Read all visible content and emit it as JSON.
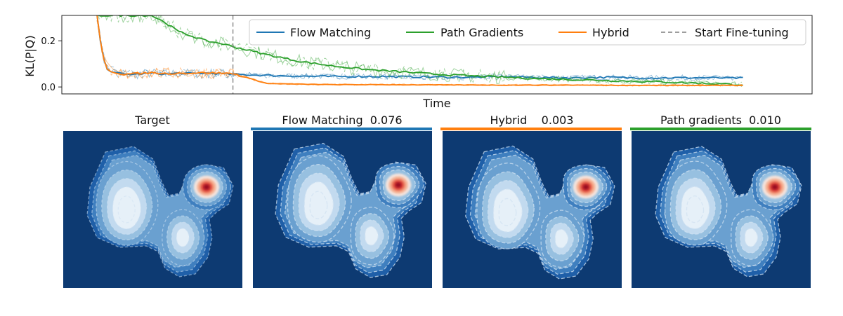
{
  "chart_data": {
    "type": "line",
    "xlabel": "Time",
    "ylabel": "KL(P|Q)",
    "x_range": [
      0,
      100
    ],
    "ylim": [
      -0.03,
      0.31
    ],
    "yticks": [
      0.0,
      0.2
    ],
    "ytick_labels": [
      "0.0",
      "0.2"
    ],
    "fine_tune_start": 20,
    "fine_tune_label": "Start Fine-tuning",
    "legend_position": "top-right",
    "colors": {
      "flow": "#1f77b4",
      "path": "#2ca02c",
      "hybrid": "#ff7f0e",
      "start": "#7f7f7f"
    },
    "series": [
      {
        "key": "flow",
        "name": "Flow Matching",
        "x": [
          0,
          0.5,
          1,
          1.5,
          2,
          3,
          4,
          6,
          8,
          10,
          12,
          14,
          16,
          18,
          20,
          25,
          30,
          35,
          40,
          45,
          50,
          55,
          60,
          65,
          70,
          75,
          80,
          85,
          90,
          95
        ],
        "y": [
          0.31,
          0.2,
          0.12,
          0.08,
          0.07,
          0.06,
          0.055,
          0.055,
          0.06,
          0.055,
          0.06,
          0.058,
          0.06,
          0.058,
          0.055,
          0.05,
          0.047,
          0.045,
          0.046,
          0.044,
          0.043,
          0.042,
          0.045,
          0.041,
          0.04,
          0.042,
          0.039,
          0.04,
          0.04,
          0.038
        ]
      },
      {
        "key": "path",
        "name": "Path Gradients",
        "x": [
          0,
          2,
          4,
          6,
          8,
          10,
          12,
          14,
          16,
          18,
          20,
          25,
          30,
          35,
          40,
          45,
          50,
          55,
          60,
          65,
          70,
          75,
          80,
          85,
          90,
          95
        ],
        "y": [
          0.31,
          0.31,
          0.31,
          0.31,
          0.31,
          0.28,
          0.24,
          0.22,
          0.2,
          0.19,
          0.175,
          0.14,
          0.11,
          0.09,
          0.075,
          0.065,
          0.055,
          0.048,
          0.042,
          0.036,
          0.032,
          0.028,
          0.024,
          0.02,
          0.015,
          0.01
        ]
      },
      {
        "key": "hybrid",
        "name": "Hybrid",
        "x": [
          0,
          0.5,
          1,
          1.5,
          2,
          3,
          4,
          6,
          8,
          10,
          12,
          14,
          16,
          18,
          20,
          25,
          30,
          35,
          40,
          50,
          60,
          70,
          80,
          90,
          95
        ],
        "y": [
          0.31,
          0.2,
          0.12,
          0.08,
          0.07,
          0.06,
          0.055,
          0.058,
          0.062,
          0.058,
          0.06,
          0.06,
          0.062,
          0.06,
          0.058,
          0.015,
          0.012,
          0.01,
          0.01,
          0.009,
          0.008,
          0.008,
          0.007,
          0.007,
          0.007
        ]
      },
      {
        "key": "start",
        "name": "Start Fine-tuning",
        "x": [
          20,
          20
        ],
        "y": [
          -0.03,
          0.31
        ]
      }
    ]
  },
  "panels": [
    {
      "key": "target",
      "title": "Target",
      "model_label": "",
      "kl": "",
      "bar_color": ""
    },
    {
      "key": "flow",
      "title": "Flow Matching  0.076",
      "model_label": "Flow Matching",
      "kl": 0.076,
      "bar_color": "#1f77b4"
    },
    {
      "key": "hybrid",
      "title": "Hybrid    0.003",
      "model_label": "Hybrid",
      "kl": 0.003,
      "bar_color": "#ff7f0e"
    },
    {
      "key": "path",
      "title": "Path gradients  0.010",
      "model_label": "Path gradients",
      "kl": 0.01,
      "bar_color": "#2ca02c"
    }
  ],
  "density": {
    "background": "#0d3a72",
    "levels": [
      "#1f5fa8",
      "#3f7fbf",
      "#6aa0d0",
      "#97c0e0",
      "#c2daef",
      "#e6f0f8"
    ],
    "peak_levels": [
      "#f4e3dc",
      "#f5b597",
      "#ee7d62",
      "#d23a35",
      "#9b0e22"
    ]
  }
}
